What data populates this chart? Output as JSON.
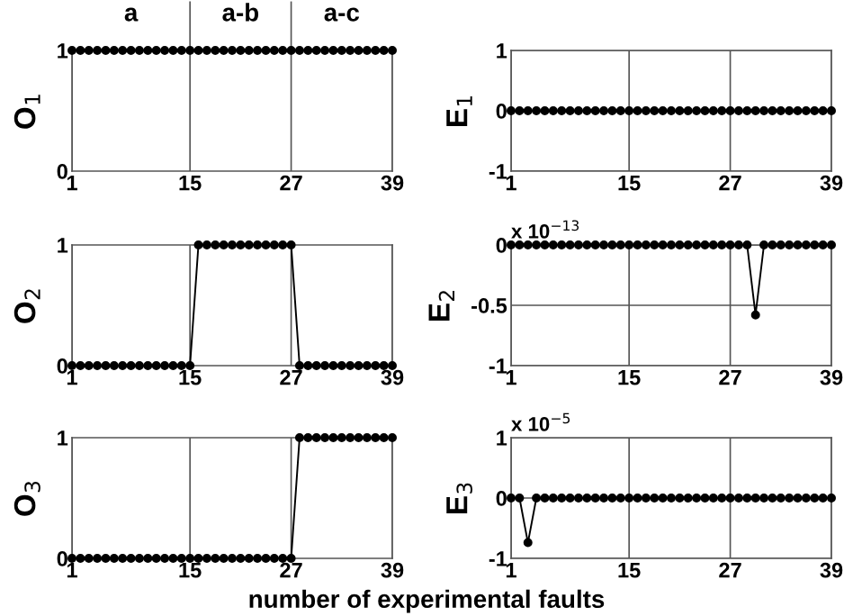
{
  "chart_data": [
    {
      "type": "line",
      "ylabel": "O$_{1}$",
      "x": [
        1,
        2,
        3,
        4,
        5,
        6,
        7,
        8,
        9,
        10,
        11,
        12,
        13,
        14,
        15,
        16,
        17,
        18,
        19,
        20,
        21,
        22,
        23,
        24,
        25,
        26,
        27,
        28,
        29,
        30,
        31,
        32,
        33,
        34,
        35,
        36,
        37,
        38,
        39
      ],
      "series": [
        {
          "color": "#000000",
          "values": [
            1,
            1,
            1,
            1,
            1,
            1,
            1,
            1,
            1,
            1,
            1,
            1,
            1,
            1,
            1,
            1,
            1,
            1,
            1,
            1,
            1,
            1,
            1,
            1,
            1,
            1,
            1,
            1,
            1,
            1,
            1,
            1,
            1,
            1,
            1,
            1,
            1,
            1,
            1
          ]
        }
      ],
      "xlim": [
        1,
        39
      ],
      "xticks": [
        1,
        15,
        27,
        39
      ],
      "ylim": [
        0,
        1
      ],
      "yticks": [
        0,
        1
      ],
      "grid": "x",
      "marker": "circle",
      "line_style": "solid",
      "annotations": [
        "a",
        "a-b",
        "a-c"
      ]
    },
    {
      "type": "line",
      "ylabel": "E$_{1}$",
      "x": [
        1,
        2,
        3,
        4,
        5,
        6,
        7,
        8,
        9,
        10,
        11,
        12,
        13,
        14,
        15,
        16,
        17,
        18,
        19,
        20,
        21,
        22,
        23,
        24,
        25,
        26,
        27,
        28,
        29,
        30,
        31,
        32,
        33,
        34,
        35,
        36,
        37,
        38,
        39
      ],
      "series": [
        {
          "color": "#000000",
          "values": [
            0,
            0,
            0,
            0,
            0,
            0,
            0,
            0,
            0,
            0,
            0,
            0,
            0,
            0,
            0,
            0,
            0,
            0,
            0,
            0,
            0,
            0,
            0,
            0,
            0,
            0,
            0,
            0,
            0,
            0,
            0,
            0,
            0,
            0,
            0,
            0,
            0,
            0,
            0
          ]
        }
      ],
      "xlim": [
        1,
        39
      ],
      "xticks": [
        1,
        15,
        27,
        39
      ],
      "ylim": [
        -1,
        1
      ],
      "yticks": [
        -1,
        0,
        1
      ],
      "grid": true,
      "marker": "circle",
      "line_style": "solid"
    },
    {
      "type": "line",
      "ylabel": "O$_{2}$",
      "x": [
        1,
        2,
        3,
        4,
        5,
        6,
        7,
        8,
        9,
        10,
        11,
        12,
        13,
        14,
        15,
        16,
        17,
        18,
        19,
        20,
        21,
        22,
        23,
        24,
        25,
        26,
        27,
        28,
        29,
        30,
        31,
        32,
        33,
        34,
        35,
        36,
        37,
        38,
        39
      ],
      "series": [
        {
          "color": "#000000",
          "values": [
            0,
            0,
            0,
            0,
            0,
            0,
            0,
            0,
            0,
            0,
            0,
            0,
            0,
            0,
            0,
            1,
            1,
            1,
            1,
            1,
            1,
            1,
            1,
            1,
            1,
            1,
            1,
            0,
            0,
            0,
            0,
            0,
            0,
            0,
            0,
            0,
            0,
            0,
            0
          ]
        }
      ],
      "xlim": [
        1,
        39
      ],
      "xticks": [
        1,
        15,
        27,
        39
      ],
      "ylim": [
        0,
        1
      ],
      "yticks": [
        0,
        1
      ],
      "grid": "x",
      "marker": "circle",
      "line_style": "solid"
    },
    {
      "type": "line",
      "ylabel": "E$_{2}$",
      "annotations": [
        "x 10$^{−13}$"
      ],
      "x": [
        1,
        2,
        3,
        4,
        5,
        6,
        7,
        8,
        9,
        10,
        11,
        12,
        13,
        14,
        15,
        16,
        17,
        18,
        19,
        20,
        21,
        22,
        23,
        24,
        25,
        26,
        27,
        28,
        29,
        30,
        31,
        32,
        33,
        34,
        35,
        36,
        37,
        38,
        39
      ],
      "series": [
        {
          "color": "#000000",
          "values": [
            0,
            0,
            0,
            0,
            0,
            0,
            0,
            0,
            0,
            0,
            0,
            0,
            0,
            0,
            0,
            0,
            0,
            0,
            0,
            0,
            0,
            0,
            0,
            0,
            0,
            0,
            0,
            0,
            0,
            -0.58,
            0,
            0,
            0,
            0,
            0,
            0,
            0,
            0,
            0
          ]
        }
      ],
      "xlim": [
        1,
        39
      ],
      "xticks": [
        1,
        15,
        27,
        39
      ],
      "ylim": [
        -1,
        0
      ],
      "yticks": [
        -1,
        -0.5,
        0
      ],
      "grid": true,
      "marker": "circle",
      "line_style": "solid"
    },
    {
      "type": "line",
      "ylabel": "O$_{3}$",
      "xlabel": "number of experimental faults",
      "x": [
        1,
        2,
        3,
        4,
        5,
        6,
        7,
        8,
        9,
        10,
        11,
        12,
        13,
        14,
        15,
        16,
        17,
        18,
        19,
        20,
        21,
        22,
        23,
        24,
        25,
        26,
        27,
        28,
        29,
        30,
        31,
        32,
        33,
        34,
        35,
        36,
        37,
        38,
        39
      ],
      "series": [
        {
          "color": "#000000",
          "values": [
            0,
            0,
            0,
            0,
            0,
            0,
            0,
            0,
            0,
            0,
            0,
            0,
            0,
            0,
            0,
            0,
            0,
            0,
            0,
            0,
            0,
            0,
            0,
            0,
            0,
            0,
            0,
            1,
            1,
            1,
            1,
            1,
            1,
            1,
            1,
            1,
            1,
            1,
            1
          ]
        }
      ],
      "xlim": [
        1,
        39
      ],
      "xticks": [
        1,
        15,
        27,
        39
      ],
      "ylim": [
        0,
        1
      ],
      "yticks": [
        0,
        1
      ],
      "grid": "x",
      "marker": "circle",
      "line_style": "solid"
    },
    {
      "type": "line",
      "ylabel": "E$_{3}$",
      "annotations": [
        "x 10$^{−5}$"
      ],
      "x": [
        1,
        2,
        3,
        4,
        5,
        6,
        7,
        8,
        9,
        10,
        11,
        12,
        13,
        14,
        15,
        16,
        17,
        18,
        19,
        20,
        21,
        22,
        23,
        24,
        25,
        26,
        27,
        28,
        29,
        30,
        31,
        32,
        33,
        34,
        35,
        36,
        37,
        38,
        39
      ],
      "series": [
        {
          "color": "#000000",
          "values": [
            0,
            0,
            -0.74,
            0,
            0,
            0,
            0,
            0,
            0,
            0,
            0,
            0,
            0,
            0,
            0,
            0,
            0,
            0,
            0,
            0,
            0,
            0,
            0,
            0,
            0,
            0,
            0,
            0,
            0,
            0,
            0,
            0,
            0,
            0,
            0,
            0,
            0,
            0,
            0
          ]
        }
      ],
      "xlim": [
        1,
        39
      ],
      "xticks": [
        1,
        15,
        27,
        39
      ],
      "ylim": [
        -1,
        1
      ],
      "yticks": [
        -1,
        0,
        1
      ],
      "grid": true,
      "marker": "circle",
      "line_style": "solid"
    }
  ]
}
